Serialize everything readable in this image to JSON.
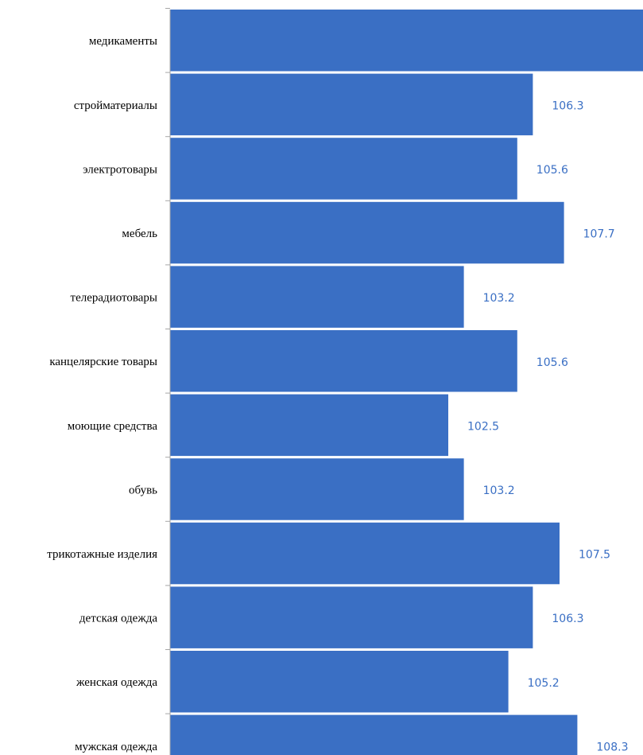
{
  "chart_data": {
    "type": "bar",
    "orientation": "horizontal",
    "categories": [
      "медикаменты",
      "стройматериалы",
      "электротовары",
      "мебель",
      "телерадиотовары",
      "канцелярские товары",
      "моющие средства",
      "обувь",
      "трикотажные изделия",
      "детская одежда",
      "женская одежда",
      "мужская одежда"
    ],
    "values": [
      112,
      106.3,
      105.6,
      107.7,
      103.2,
      105.6,
      102.5,
      103.2,
      107.5,
      106.3,
      105.2,
      108.3
    ],
    "color": "#3a6fc4",
    "label_color": "#3a6fc4",
    "xlim": [
      90,
      111.25
    ]
  }
}
